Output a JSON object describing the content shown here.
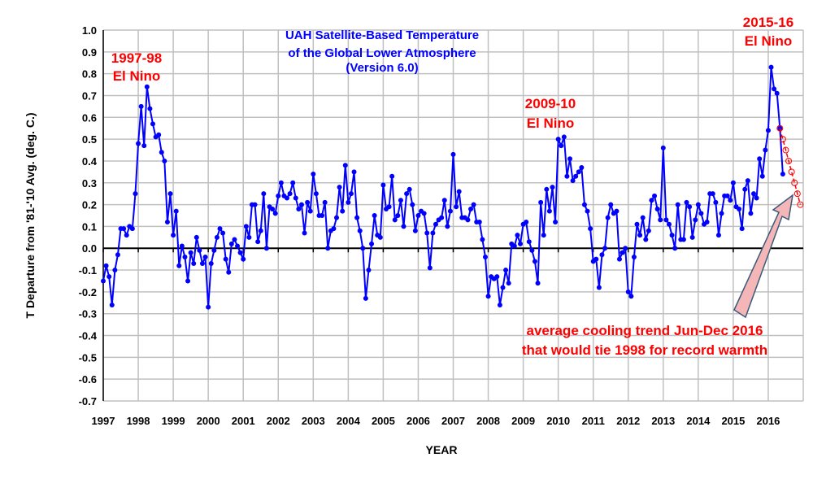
{
  "chart_data": {
    "type": "line",
    "title": [
      "UAH Satellite-Based Temperature",
      "of the Global Lower Atmosphere",
      "(Version 6.0)"
    ],
    "xlabel": "YEAR",
    "ylabel": "T Departure from '81-'10 Avg. (deg. C.)",
    "xlim": [
      1997,
      2017
    ],
    "ylim": [
      -0.7,
      1.0
    ],
    "grid": true,
    "x_ticks": [
      "1997",
      "1998",
      "1999",
      "2000",
      "2001",
      "2002",
      "2003",
      "2004",
      "2005",
      "2006",
      "2007",
      "2008",
      "2009",
      "2010",
      "2011",
      "2012",
      "2013",
      "2014",
      "2015",
      "2016"
    ],
    "y_ticks": [
      "1.0",
      "0.9",
      "0.8",
      "0.7",
      "0.6",
      "0.5",
      "0.4",
      "0.3",
      "0.2",
      "0.1",
      "0.0",
      "-0.1",
      "-0.2",
      "-0.3",
      "-0.4",
      "-0.5",
      "-0.6",
      "-0.7"
    ],
    "colors": {
      "series": "#0000ff",
      "trend": "#ff0000",
      "annotation": "#ff0000",
      "arrow": "#f4b6b6"
    },
    "series": [
      {
        "start": "1997-01",
        "frequency": "monthly",
        "values": [
          -0.15,
          -0.08,
          -0.13,
          -0.26,
          -0.1,
          -0.03,
          0.09,
          0.09,
          0.06,
          0.1,
          0.09,
          0.25,
          0.48,
          0.65,
          0.47,
          0.74,
          0.64,
          0.57,
          0.51,
          0.52,
          0.44,
          0.4,
          0.12,
          0.25,
          0.06,
          0.17,
          -0.08,
          0.01,
          -0.04,
          -0.15,
          -0.02,
          -0.07,
          0.05,
          -0.01,
          -0.07,
          -0.04,
          -0.27,
          -0.07,
          -0.01,
          0.05,
          0.09,
          0.07,
          -0.05,
          -0.11,
          0.02,
          0.04,
          0.01,
          -0.02,
          -0.05,
          0.1,
          0.05,
          0.2,
          0.2,
          0.03,
          0.08,
          0.25,
          0.0,
          0.19,
          0.18,
          0.16,
          0.24,
          0.3,
          0.24,
          0.23,
          0.25,
          0.3,
          0.23,
          0.18,
          0.2,
          0.07,
          0.21,
          0.17,
          0.34,
          0.25,
          0.15,
          0.15,
          0.21,
          0.0,
          0.08,
          0.09,
          0.14,
          0.28,
          0.17,
          0.38,
          0.21,
          0.25,
          0.35,
          0.14,
          0.08,
          0.0,
          -0.23,
          -0.1,
          0.02,
          0.15,
          0.06,
          0.05,
          0.29,
          0.18,
          0.19,
          0.33,
          0.13,
          0.15,
          0.22,
          0.1,
          0.25,
          0.27,
          0.2,
          0.08,
          0.15,
          0.17,
          0.16,
          0.07,
          -0.09,
          0.07,
          0.11,
          0.13,
          0.14,
          0.22,
          0.1,
          0.17,
          0.43,
          0.19,
          0.26,
          0.14,
          0.14,
          0.13,
          0.18,
          0.2,
          0.12,
          0.12,
          0.04,
          -0.04,
          -0.22,
          -0.13,
          -0.14,
          -0.13,
          -0.26,
          -0.18,
          -0.1,
          -0.16,
          0.02,
          0.01,
          0.06,
          0.02,
          0.11,
          0.12,
          0.03,
          -0.01,
          -0.06,
          -0.16,
          0.21,
          0.06,
          0.27,
          0.17,
          0.28,
          0.12,
          0.5,
          0.47,
          0.51,
          0.33,
          0.41,
          0.31,
          0.33,
          0.35,
          0.37,
          0.2,
          0.17,
          0.09,
          -0.06,
          -0.05,
          -0.18,
          -0.03,
          0.0,
          0.14,
          0.2,
          0.16,
          0.17,
          -0.05,
          -0.02,
          0.0,
          -0.2,
          -0.22,
          -0.04,
          0.11,
          0.06,
          0.14,
          0.04,
          0.08,
          0.22,
          0.24,
          0.18,
          0.13,
          0.46,
          0.13,
          0.11,
          0.06,
          0.0,
          0.2,
          0.04,
          0.04,
          0.21,
          0.19,
          0.05,
          0.13,
          0.2,
          0.16,
          0.11,
          0.12,
          0.25,
          0.25,
          0.21,
          0.06,
          0.16,
          0.24,
          0.24,
          0.22,
          0.3,
          0.19,
          0.18,
          0.09,
          0.27,
          0.31,
          0.16,
          0.25,
          0.23,
          0.41,
          0.33,
          0.45,
          0.54,
          0.83,
          0.73,
          0.71,
          0.55,
          0.34
        ]
      }
    ],
    "trend": {
      "start": "2016-05",
      "frequency": "monthly",
      "values": [
        0.55,
        0.5,
        0.45,
        0.4,
        0.35,
        0.3,
        0.25,
        0.2
      ]
    },
    "annotations": [
      {
        "lines": [
          "1997-98",
          "El Nino"
        ]
      },
      {
        "lines": [
          "2009-10",
          "El Nino"
        ]
      },
      {
        "lines": [
          "2015-16",
          "El Nino"
        ]
      },
      {
        "lines": [
          "average cooling trend Jun-Dec 2016",
          "that would tie 1998 for record warmth"
        ]
      }
    ]
  }
}
